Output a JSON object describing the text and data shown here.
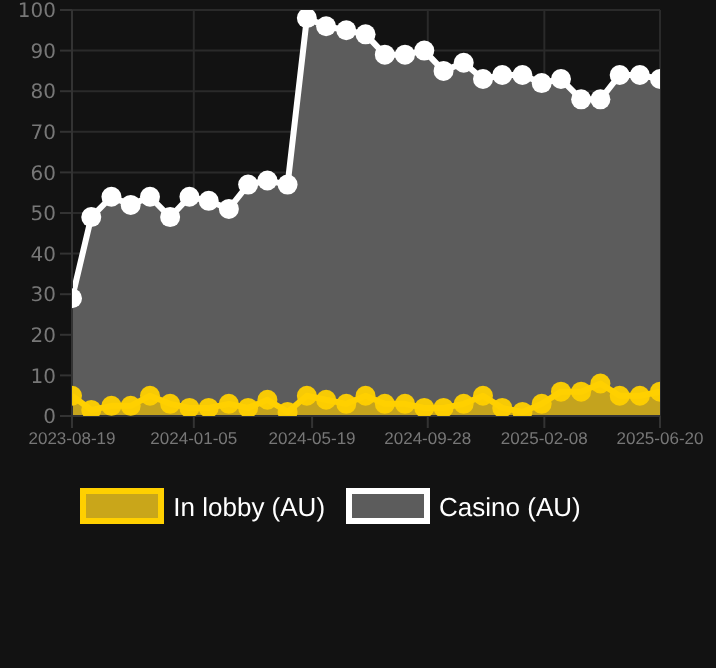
{
  "chart_data": {
    "type": "area",
    "x": [
      "2023-08-19",
      "2023-09-10",
      "2023-10-03",
      "2023-10-25",
      "2023-11-16",
      "2023-12-09",
      "2023-12-31",
      "2024-01-22",
      "2024-02-14",
      "2024-03-07",
      "2024-03-29",
      "2024-04-21",
      "2024-05-13",
      "2024-06-04",
      "2024-06-27",
      "2024-07-19",
      "2024-08-10",
      "2024-09-02",
      "2024-09-24",
      "2024-10-16",
      "2024-11-08",
      "2024-11-30",
      "2024-12-22",
      "2025-01-14",
      "2025-02-05",
      "2025-02-27",
      "2025-03-22",
      "2025-04-13",
      "2025-05-05",
      "2025-05-28",
      "2025-06-20"
    ],
    "series": [
      {
        "name": "In lobby (AU)",
        "color": "#ffd000",
        "values": [
          5,
          1.5,
          2.5,
          2.5,
          5,
          3,
          2,
          2,
          3,
          2,
          4,
          1,
          5,
          4,
          3,
          5,
          3,
          3,
          2,
          2,
          3,
          5,
          2,
          1,
          3,
          6,
          6,
          8,
          5,
          5,
          6
        ]
      },
      {
        "name": "Casino (AU)",
        "color": "#ffffff",
        "values": [
          29,
          49,
          54,
          52,
          54,
          49,
          54,
          53,
          51,
          57,
          58,
          57,
          98,
          96,
          95,
          94,
          89,
          89,
          90,
          85,
          87,
          83,
          84,
          84,
          82,
          83,
          78,
          78,
          84,
          84,
          83
        ]
      }
    ],
    "xlim": [
      "2023-08-19",
      "2025-06-20"
    ],
    "xticks": [
      "2023-08-19",
      "2024-01-05",
      "2024-05-19",
      "2024-09-28",
      "2025-02-08",
      "2025-06-20"
    ],
    "ylim": [
      0,
      100
    ],
    "yticks": [
      0,
      10,
      20,
      30,
      40,
      50,
      60,
      70,
      80,
      90,
      100
    ],
    "grid": true,
    "legend": "bottom",
    "marker": "circle"
  }
}
